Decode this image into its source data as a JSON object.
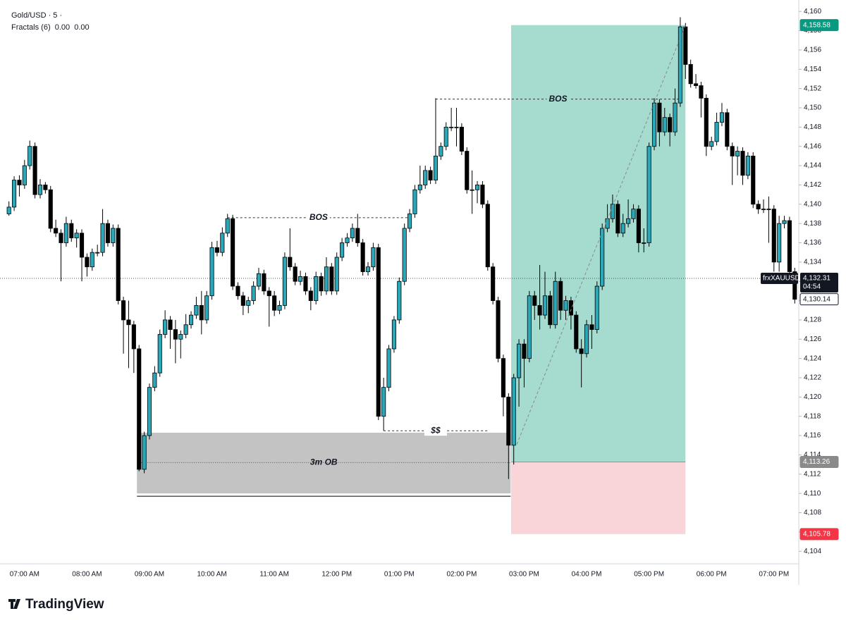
{
  "chart_data": {
    "type": "candlestick",
    "title": "Gold/USD · 5 ·",
    "subtitle": "Fractals (6)  0.00  0.00",
    "brand": "TradingView",
    "up_color": "#2aa7b8",
    "down_color": "#000000",
    "categories": [
      null,
      null,
      null,
      "07:00 AM",
      null,
      null,
      null,
      null,
      null,
      null,
      null,
      null,
      null,
      null,
      null,
      "08:00 AM",
      null,
      null,
      null,
      null,
      null,
      null,
      null,
      null,
      null,
      null,
      null,
      "09:00 AM",
      null,
      null,
      null,
      null,
      null,
      null,
      null,
      null,
      null,
      null,
      null,
      "10:00 AM",
      null,
      null,
      null,
      null,
      null,
      null,
      null,
      null,
      null,
      null,
      null,
      "11:00 AM",
      null,
      null,
      null,
      null,
      null,
      null,
      null,
      null,
      null,
      null,
      null,
      "12:00 PM",
      null,
      null,
      null,
      null,
      null,
      null,
      null,
      null,
      null,
      null,
      null,
      "01:00 PM",
      null,
      null,
      null,
      null,
      null,
      null,
      null,
      null,
      null,
      null,
      null,
      "02:00 PM",
      null,
      null,
      null,
      null,
      null,
      null,
      null,
      null,
      null,
      null,
      null,
      "03:00 PM",
      null,
      null,
      null,
      null,
      null,
      null,
      null,
      null,
      null,
      null,
      null,
      "04:00 PM",
      null,
      null,
      null,
      null,
      null,
      null,
      null,
      null,
      null,
      null,
      null,
      "05:00 PM",
      null,
      null,
      null,
      null,
      null,
      null,
      null,
      null,
      null,
      null,
      null,
      "06:00 PM",
      null,
      null,
      null,
      null,
      null,
      null,
      null,
      null,
      null,
      null,
      null,
      "07:00 PM",
      null,
      null,
      null,
      null
    ],
    "open": [
      4139,
      4139.7,
      4142.5,
      4142,
      4144,
      4146,
      4141,
      4142,
      4141.5,
      4137.5,
      4137,
      4136,
      4138,
      4136.5,
      4137,
      4134.5,
      4133.5,
      4135,
      4135,
      4138,
      4136,
      4137.5,
      4130,
      4128,
      4127.5,
      4125,
      4112.5,
      4116,
      4121,
      4122.5,
      4126.5,
      4128,
      4127,
      4126,
      4126.5,
      4127.5,
      4128.5,
      4129.5,
      4128,
      4130.5,
      4135.5,
      4135,
      4137,
      4138.5,
      4131.5,
      4130.5,
      4129.5,
      4130,
      4131.5,
      4132.8,
      4131,
      4130.5,
      4129,
      4129.5,
      4134.5,
      4133.5,
      4132,
      4132.5,
      4131,
      4130,
      4132.5,
      4131,
      4133.5,
      4131,
      4134.5,
      4136,
      4136.5,
      4137.5,
      4136,
      4133,
      4133.5,
      4135.5,
      4118,
      4121,
      4125,
      4128,
      4132,
      4137.5,
      4139,
      4141.5,
      4142,
      4143.5,
      4142.5,
      4145,
      4146,
      4148,
      4148,
      4148,
      4145.5,
      4141.5,
      4141.5,
      4142,
      4140,
      4133.5,
      4130,
      4124,
      4120,
      4115,
      4122,
      4125.5,
      4124,
      4130.5,
      4129.5,
      4128.5,
      4130.5,
      4127.5,
      4132,
      4129,
      4130,
      4128.5,
      4125,
      4124.5,
      4127.5,
      4127,
      4131.5,
      4137.5,
      4138.5,
      4140,
      4137,
      4138,
      4138.5,
      4139.5,
      4136,
      4136,
      4146,
      4150.5,
      4147.5,
      4149,
      4147.5,
      4150.5,
      4158.4,
      4154.5,
      4152.5,
      4152.3,
      4151,
      4146,
      4146.5,
      4148.5,
      4149.5,
      4146,
      4145,
      4145.5,
      4143,
      4145,
      4140,
      4139.5,
      4139.5,
      4139.5,
      4134,
      4138,
      4138.3,
      4133
    ],
    "high": [
      4140.3,
      4142.9,
      4143,
      4144.6,
      4146.6,
      4146.4,
      4142.6,
      4142.3,
      4141.9,
      4138.4,
      4137.4,
      4138.7,
      4138.4,
      4137.4,
      4137.4,
      4134.9,
      4135.4,
      4135.8,
      4139.5,
      4138.4,
      4137.9,
      4137.9,
      4130.4,
      4130,
      4127.9,
      4125.4,
      4116.4,
      4121.4,
      4123.2,
      4127,
      4129,
      4128.4,
      4128,
      4126.9,
      4128.6,
      4128.9,
      4130.4,
      4131,
      4131,
      4136.1,
      4136.2,
      4137.6,
      4139,
      4138.9,
      4131.9,
      4130.9,
      4130.4,
      4132,
      4133.4,
      4133.2,
      4131.4,
      4131,
      4130,
      4135,
      4137.5,
      4133.9,
      4133.1,
      4132.9,
      4131.4,
      4133,
      4132.9,
      4134.5,
      4133.9,
      4135,
      4136.5,
      4137,
      4138,
      4139,
      4136.4,
      4134,
      4136,
      4135.9,
      4122,
      4125.4,
      4128.4,
      4132.4,
      4138,
      4139.5,
      4142,
      4144,
      4144,
      4143.9,
      4151,
      4146.4,
      4148.5,
      4150,
      4150,
      4148.4,
      4145.9,
      4143.5,
      4142.4,
      4142.4,
      4140.4,
      4133.9,
      4130.4,
      4124.4,
      4120.4,
      4122.4,
      4126,
      4126,
      4131,
      4131,
      4133.7,
      4133,
      4131,
      4133,
      4132.4,
      4130.5,
      4130.4,
      4128.9,
      4126,
      4128,
      4128.5,
      4132,
      4138,
      4140,
      4141,
      4140.4,
      4139,
      4140.5,
      4140,
      4139.9,
      4137.5,
      4146.4,
      4151,
      4150.9,
      4150,
      4149.4,
      4152,
      4159.4,
      4158.8,
      4155,
      4153.5,
      4152.7,
      4151.4,
      4147,
      4149.5,
      4150.5,
      4149.9,
      4146.4,
      4146,
      4145.9,
      4145.4,
      4145.4,
      4140.4,
      4140.5,
      4140.8,
      4139.9,
      4138.8,
      4138.8,
      4138.7,
      4133.4
    ],
    "low": [
      4138.8,
      4139.3,
      4140.8,
      4141.6,
      4143.6,
      4140.6,
      4140.6,
      4141.1,
      4137.1,
      4136.6,
      4132,
      4135.6,
      4136.1,
      4135.5,
      4132,
      4132.5,
      4133.1,
      4134.6,
      4134.6,
      4135.6,
      4135.6,
      4129.6,
      4124.5,
      4123,
      4122.5,
      4112.3,
      4112.1,
      4115.6,
      4120.6,
      4122.1,
      4126.1,
      4125,
      4123.5,
      4124,
      4126.1,
      4127.1,
      4128.1,
      4126.5,
      4127.6,
      4130.1,
      4134.6,
      4134.6,
      4136.6,
      4131.1,
      4130.1,
      4128.5,
      4128.7,
      4129.6,
      4131.1,
      4130.6,
      4127.3,
      4128.4,
      4128.6,
      4129.1,
      4133.1,
      4131.6,
      4131.6,
      4130.6,
      4129,
      4129.6,
      4130.5,
      4130.6,
      4130.6,
      4130.6,
      4134.1,
      4135.6,
      4136.1,
      4135.6,
      4132.6,
      4132.6,
      4133.1,
      4117.6,
      4116.5,
      4120.6,
      4124.6,
      4127.6,
      4131.6,
      4137.1,
      4138.6,
      4141.1,
      4141.6,
      4142.1,
      4142.1,
      4144.6,
      4145.6,
      4147.6,
      4146,
      4145.1,
      4141.1,
      4139,
      4140.1,
      4139.6,
      4133.1,
      4129.6,
      4123.6,
      4118,
      4111.5,
      4113,
      4119,
      4121,
      4123.6,
      4128,
      4127,
      4128.1,
      4127.1,
      4127.1,
      4128,
      4128,
      4127,
      4124.6,
      4121,
      4124.1,
      4125,
      4126.6,
      4131.1,
      4137.1,
      4138.1,
      4136.6,
      4136.6,
      4137.6,
      4138.1,
      4135,
      4135,
      4135.6,
      4145.6,
      4146,
      4147.1,
      4146,
      4147.1,
      4150.1,
      4153,
      4152.1,
      4152,
      4149,
      4145,
      4145.6,
      4146.1,
      4148.1,
      4145.6,
      4142,
      4143,
      4142,
      4142.6,
      4139.6,
      4139,
      4139.1,
      4136,
      4133,
      4133,
      4137.5,
      4132.6,
      4129.7
    ],
    "close": [
      4139.7,
      4142.5,
      4142,
      4144,
      4146,
      4141,
      4142,
      4141.5,
      4137.5,
      4137,
      4136,
      4138,
      4136.5,
      4137,
      4134.5,
      4133.5,
      4135,
      4135,
      4138,
      4136,
      4137.5,
      4130,
      4128,
      4127.5,
      4125,
      4112.5,
      4116,
      4121,
      4122.5,
      4126.5,
      4128,
      4127,
      4126,
      4126.5,
      4127.5,
      4128.5,
      4129.5,
      4128,
      4130.5,
      4135.5,
      4135,
      4137,
      4138.5,
      4131.5,
      4130.5,
      4129.5,
      4130,
      4131.5,
      4132.8,
      4131,
      4130.5,
      4129,
      4129.5,
      4134.5,
      4133.5,
      4132,
      4132.5,
      4131,
      4130,
      4132.5,
      4131,
      4133.5,
      4131,
      4134.5,
      4136,
      4136.5,
      4137.5,
      4136,
      4133,
      4133.5,
      4135.5,
      4118,
      4121,
      4125,
      4128,
      4132,
      4137.5,
      4139,
      4141.5,
      4142,
      4143.5,
      4142.5,
      4145,
      4146,
      4148,
      4148,
      4148,
      4145.5,
      4141.5,
      4141.5,
      4142,
      4140,
      4133.5,
      4130,
      4124,
      4120,
      4115,
      4122,
      4125.5,
      4124,
      4130.5,
      4129.5,
      4128.5,
      4130.5,
      4127.5,
      4132,
      4129,
      4130,
      4128.5,
      4125,
      4124.5,
      4127.5,
      4127,
      4131.5,
      4137.5,
      4138.5,
      4140,
      4137,
      4138,
      4138.5,
      4139.5,
      4136,
      4136,
      4146,
      4150.5,
      4147.5,
      4149,
      4147.5,
      4150.5,
      4158.4,
      4154.5,
      4152.5,
      4152.3,
      4151,
      4146,
      4146.5,
      4148.5,
      4149.5,
      4146,
      4145,
      4145.5,
      4143,
      4145,
      4140,
      4139.5,
      4139.5,
      4139.5,
      4134,
      4138,
      4138.3,
      4133,
      4130.14
    ],
    "ylim": [
      4102.7,
      4160.6
    ],
    "yticks": [
      {
        "value": 4104,
        "label": "4,104"
      },
      {
        "value": 4106,
        "label": "4,106"
      },
      {
        "value": 4108,
        "label": "4,108"
      },
      {
        "value": 4110,
        "label": "4,110"
      },
      {
        "value": 4112,
        "label": "4,112"
      },
      {
        "value": 4114,
        "label": "4,114"
      },
      {
        "value": 4116,
        "label": "4,116"
      },
      {
        "value": 4118,
        "label": "4,118"
      },
      {
        "value": 4120,
        "label": "4,120"
      },
      {
        "value": 4122,
        "label": "4,122"
      },
      {
        "value": 4124,
        "label": "4,124"
      },
      {
        "value": 4126,
        "label": "4,126"
      },
      {
        "value": 4128,
        "label": "4,128"
      },
      {
        "value": 4130,
        "label": "4,130"
      },
      {
        "value": 4132,
        "label": "4,132"
      },
      {
        "value": 4134,
        "label": "4,134"
      },
      {
        "value": 4136,
        "label": "4,136"
      },
      {
        "value": 4138,
        "label": "4,138"
      },
      {
        "value": 4140,
        "label": "4,140"
      },
      {
        "value": 4142,
        "label": "4,142"
      },
      {
        "value": 4144,
        "label": "4,144"
      },
      {
        "value": 4146,
        "label": "4,146"
      },
      {
        "value": 4148,
        "label": "4,148"
      },
      {
        "value": 4150,
        "label": "4,150"
      },
      {
        "value": 4152,
        "label": "4,152"
      },
      {
        "value": 4154,
        "label": "4,154"
      },
      {
        "value": 4156,
        "label": "4,156"
      },
      {
        "value": 4158,
        "label": "4,158"
      },
      {
        "value": 4160,
        "label": "4,160"
      }
    ],
    "annotations": [
      {
        "text": "BOS",
        "value": 4138.6
      },
      {
        "text": "BOS",
        "value": 4150.9
      },
      {
        "text": "$$",
        "value": 4116.5
      }
    ],
    "order_block": {
      "label": "3m OB",
      "top": 4116.3,
      "mid": 4113.2,
      "bottom": 4110
    },
    "position": {
      "target": {
        "value": 4158.58,
        "label": "4,158.58"
      },
      "entry": {
        "value": 4113.26,
        "label": "4,113.26"
      },
      "stop": {
        "value": 4105.78,
        "label": "4,105.78"
      }
    },
    "last_price": {
      "value": 4130.14,
      "label": "4,130.14"
    },
    "crosshair": {
      "value": 4132.31,
      "label": "4,132.31",
      "symbol": "frxXAUUSD",
      "countdown": "04:54"
    }
  }
}
